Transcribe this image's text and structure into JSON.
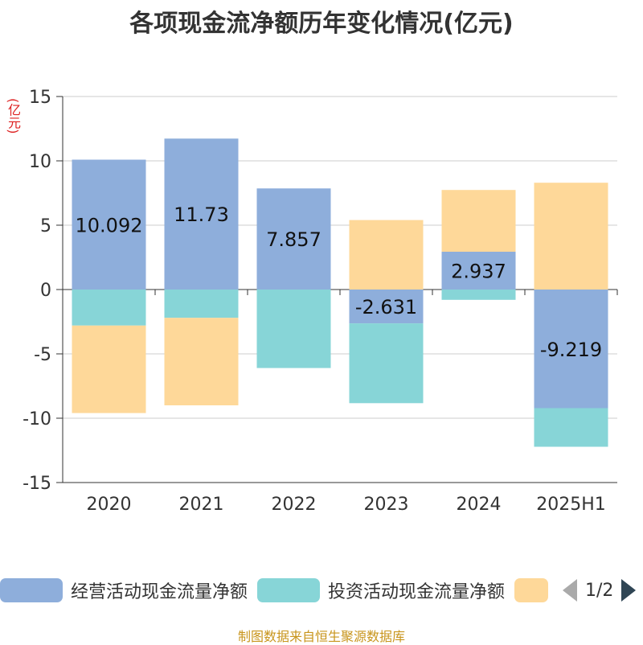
{
  "title": "各项现金流净额历年变化情况(亿元)",
  "unit_label": "(亿元)",
  "source": "制图数据来自恒生聚源数据库",
  "legend": {
    "items": [
      {
        "label": "经营活动现金流量净额",
        "color": "#8eaedb"
      },
      {
        "label": "投资活动现金流量净额",
        "color": "#87d5d7"
      },
      {
        "label": "",
        "color": "#fed899"
      }
    ],
    "pager": "1/2"
  },
  "chart_data": {
    "type": "bar",
    "stacked": true,
    "categories": [
      "2020",
      "2021",
      "2022",
      "2023",
      "2024",
      "2025H1"
    ],
    "ylim": [
      -15,
      15
    ],
    "yticks": [
      15,
      10,
      5,
      0,
      -5,
      -10,
      -15
    ],
    "grid": true,
    "legend_position": "bottom",
    "series": [
      {
        "name": "经营活动现金流量净额",
        "color": "#8eaedb",
        "values": [
          10.092,
          11.73,
          7.857,
          -2.631,
          2.937,
          -9.219
        ],
        "labels": true
      },
      {
        "name": "投资活动现金流量净额",
        "color": "#87d5d7",
        "values": [
          -2.8,
          -2.2,
          -6.1,
          -6.2,
          -0.8,
          -3.0
        ],
        "labels": false
      },
      {
        "color": "#fed899",
        "values": [
          -6.8,
          -6.8,
          0.0,
          5.4,
          4.8,
          8.3
        ],
        "labels": false
      }
    ]
  }
}
